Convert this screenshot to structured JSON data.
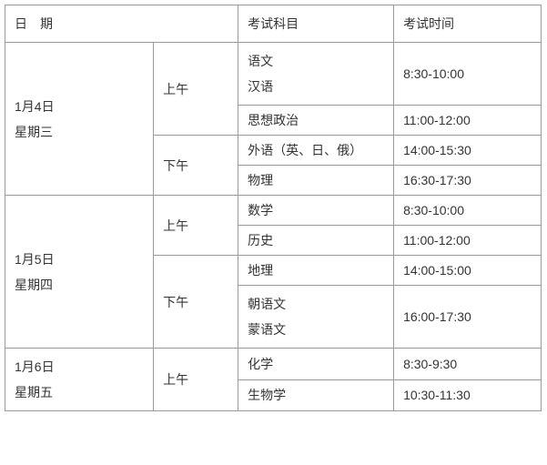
{
  "headers": {
    "date": "日　期",
    "subject": "考试科目",
    "time": "考试时间"
  },
  "days": [
    {
      "date_line1": "1月4日",
      "date_line2": "星期三",
      "periods": [
        {
          "label": "上午",
          "slots": [
            {
              "subject_line1": "语文",
              "subject_line2": "汉语",
              "time": "8:30-10:00"
            },
            {
              "subject": "思想政治",
              "time": "11:00-12:00"
            }
          ]
        },
        {
          "label": "下午",
          "slots": [
            {
              "subject": "外语（英、日、俄）",
              "time": "14:00-15:30"
            },
            {
              "subject": "物理",
              "time": "16:30-17:30"
            }
          ]
        }
      ]
    },
    {
      "date_line1": "1月5日",
      "date_line2": "星期四",
      "periods": [
        {
          "label": "上午",
          "slots": [
            {
              "subject": "数学",
              "time": "8:30-10:00"
            },
            {
              "subject": "历史",
              "time": "11:00-12:00"
            }
          ]
        },
        {
          "label": "下午",
          "slots": [
            {
              "subject": "地理",
              "time": "14:00-15:00"
            },
            {
              "subject_line1": "朝语文",
              "subject_line2": "蒙语文",
              "time": "16:00-17:30"
            }
          ]
        }
      ]
    },
    {
      "date_line1": "1月6日",
      "date_line2": "星期五",
      "periods": [
        {
          "label": "上午",
          "slots": [
            {
              "subject": "化学",
              "time": "8:30-9:30"
            },
            {
              "subject": "生物学",
              "time": "10:30-11:30"
            }
          ]
        }
      ]
    }
  ]
}
